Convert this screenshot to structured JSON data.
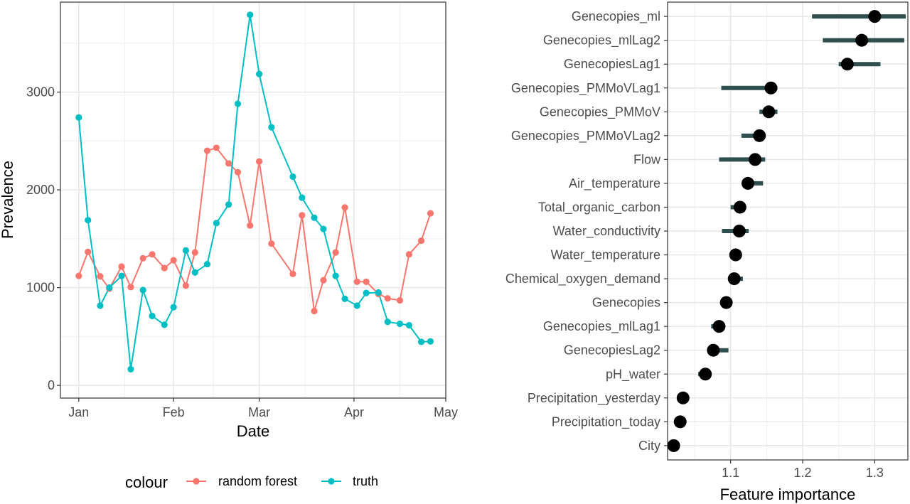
{
  "chart_data": [
    {
      "type": "line",
      "xlabel": "Date",
      "ylabel": "Prevalence",
      "x_ticks": [
        "Jan",
        "Feb",
        "Mar",
        "Apr",
        "May"
      ],
      "x_tick_dates": [
        "2022-01-01",
        "2022-02-01",
        "2022-03-01",
        "2022-04-01",
        "2022-05-01"
      ],
      "ylim": [
        0,
        3800
      ],
      "y_ticks": [
        0,
        1000,
        2000,
        3000
      ],
      "grid": true,
      "legend_title": "colour",
      "legend_position": "bottom",
      "series": [
        {
          "name": "random forest",
          "color": "#F8766D",
          "points": [
            {
              "date": "2022-01-01",
              "y": 1120
            },
            {
              "date": "2022-01-04",
              "y": 1365
            },
            {
              "date": "2022-01-08",
              "y": 1115
            },
            {
              "date": "2022-01-11",
              "y": 990
            },
            {
              "date": "2022-01-15",
              "y": 1215
            },
            {
              "date": "2022-01-18",
              "y": 1005
            },
            {
              "date": "2022-01-22",
              "y": 1300
            },
            {
              "date": "2022-01-25",
              "y": 1340
            },
            {
              "date": "2022-01-29",
              "y": 1200
            },
            {
              "date": "2022-02-01",
              "y": 1280
            },
            {
              "date": "2022-02-05",
              "y": 1020
            },
            {
              "date": "2022-02-08",
              "y": 1360
            },
            {
              "date": "2022-02-12",
              "y": 2400
            },
            {
              "date": "2022-02-15",
              "y": 2430
            },
            {
              "date": "2022-02-19",
              "y": 2270
            },
            {
              "date": "2022-02-22",
              "y": 2180
            },
            {
              "date": "2022-02-26",
              "y": 1635
            },
            {
              "date": "2022-03-01",
              "y": 2290
            },
            {
              "date": "2022-03-05",
              "y": 1450
            },
            {
              "date": "2022-03-12",
              "y": 1140
            },
            {
              "date": "2022-03-15",
              "y": 1740
            },
            {
              "date": "2022-03-19",
              "y": 760
            },
            {
              "date": "2022-03-22",
              "y": 1075
            },
            {
              "date": "2022-03-26",
              "y": 1360
            },
            {
              "date": "2022-03-29",
              "y": 1820
            },
            {
              "date": "2022-04-02",
              "y": 1060
            },
            {
              "date": "2022-04-05",
              "y": 1060
            },
            {
              "date": "2022-04-09",
              "y": 935
            },
            {
              "date": "2022-04-12",
              "y": 890
            },
            {
              "date": "2022-04-16",
              "y": 870
            },
            {
              "date": "2022-04-19",
              "y": 1340
            },
            {
              "date": "2022-04-23",
              "y": 1480
            },
            {
              "date": "2022-04-26",
              "y": 1760
            }
          ]
        },
        {
          "name": "truth",
          "color": "#00BFC4",
          "points": [
            {
              "date": "2022-01-01",
              "y": 2740
            },
            {
              "date": "2022-01-04",
              "y": 1690
            },
            {
              "date": "2022-01-08",
              "y": 815
            },
            {
              "date": "2022-01-11",
              "y": 1000
            },
            {
              "date": "2022-01-15",
              "y": 1120
            },
            {
              "date": "2022-01-18",
              "y": 165
            },
            {
              "date": "2022-01-22",
              "y": 975
            },
            {
              "date": "2022-01-25",
              "y": 710
            },
            {
              "date": "2022-01-29",
              "y": 620
            },
            {
              "date": "2022-02-01",
              "y": 800
            },
            {
              "date": "2022-02-05",
              "y": 1380
            },
            {
              "date": "2022-02-08",
              "y": 1155
            },
            {
              "date": "2022-02-12",
              "y": 1240
            },
            {
              "date": "2022-02-15",
              "y": 1660
            },
            {
              "date": "2022-02-19",
              "y": 1850
            },
            {
              "date": "2022-02-22",
              "y": 2880
            },
            {
              "date": "2022-02-26",
              "y": 3790
            },
            {
              "date": "2022-03-01",
              "y": 3185
            },
            {
              "date": "2022-03-05",
              "y": 2640
            },
            {
              "date": "2022-03-12",
              "y": 2135
            },
            {
              "date": "2022-03-15",
              "y": 1920
            },
            {
              "date": "2022-03-19",
              "y": 1715
            },
            {
              "date": "2022-03-22",
              "y": 1600
            },
            {
              "date": "2022-03-26",
              "y": 1120
            },
            {
              "date": "2022-03-29",
              "y": 885
            },
            {
              "date": "2022-04-02",
              "y": 815
            },
            {
              "date": "2022-04-05",
              "y": 945
            },
            {
              "date": "2022-04-09",
              "y": 950
            },
            {
              "date": "2022-04-12",
              "y": 650
            },
            {
              "date": "2022-04-16",
              "y": 630
            },
            {
              "date": "2022-04-19",
              "y": 615
            },
            {
              "date": "2022-04-23",
              "y": 445
            },
            {
              "date": "2022-04-26",
              "y": 450
            }
          ]
        }
      ]
    },
    {
      "type": "dot-interval",
      "xlabel": "Feature importance",
      "ylabel": "",
      "xlim": [
        1.0125,
        1.346
      ],
      "x_ticks": [
        1.1,
        1.2,
        1.3
      ],
      "x_tick_labels": [
        "1.1",
        "1.2",
        "1.3"
      ],
      "grid": true,
      "point_color": "#000000",
      "interval_color": "#2F4F4F",
      "features": [
        {
          "name": "Genecopies_ml",
          "importance": 1.3,
          "lower": 1.213,
          "upper": 1.343
        },
        {
          "name": "Genecopies_mlLag2",
          "importance": 1.282,
          "lower": 1.228,
          "upper": 1.341
        },
        {
          "name": "GenecopiesLag1",
          "importance": 1.262,
          "lower": 1.25,
          "upper": 1.308
        },
        {
          "name": "Genecopies_PMMoVLag1",
          "importance": 1.156,
          "lower": 1.087,
          "upper": 1.165
        },
        {
          "name": "Genecopies_PMMoV",
          "importance": 1.153,
          "lower": 1.14,
          "upper": 1.165
        },
        {
          "name": "Genecopies_PMMoVLag2",
          "importance": 1.14,
          "lower": 1.115,
          "upper": 1.147
        },
        {
          "name": "Flow",
          "importance": 1.134,
          "lower": 1.084,
          "upper": 1.148
        },
        {
          "name": "Air_temperature",
          "importance": 1.124,
          "lower": 1.12,
          "upper": 1.145
        },
        {
          "name": "Total_organic_carbon",
          "importance": 1.113,
          "lower": 1.1,
          "upper": 1.116
        },
        {
          "name": "Water_conductivity",
          "importance": 1.112,
          "lower": 1.088,
          "upper": 1.125
        },
        {
          "name": "Water_temperature",
          "importance": 1.107,
          "lower": 1.105,
          "upper": 1.109
        },
        {
          "name": "Chemical_oxygen_demand",
          "importance": 1.105,
          "lower": 1.1,
          "upper": 1.117
        },
        {
          "name": "Genecopies",
          "importance": 1.094,
          "lower": 1.092,
          "upper": 1.096
        },
        {
          "name": "Genecopies_mlLag1",
          "importance": 1.084,
          "lower": 1.073,
          "upper": 1.086
        },
        {
          "name": "GenecopiesLag2",
          "importance": 1.076,
          "lower": 1.072,
          "upper": 1.097
        },
        {
          "name": "pH_water",
          "importance": 1.065,
          "lower": 1.055,
          "upper": 1.067
        },
        {
          "name": "Precipitation_yesterday",
          "importance": 1.034,
          "lower": 1.032,
          "upper": 1.036
        },
        {
          "name": "Precipitation_today",
          "importance": 1.03,
          "lower": 1.028,
          "upper": 1.032
        },
        {
          "name": "City",
          "importance": 1.021,
          "lower": 1.019,
          "upper": 1.023
        }
      ]
    }
  ]
}
